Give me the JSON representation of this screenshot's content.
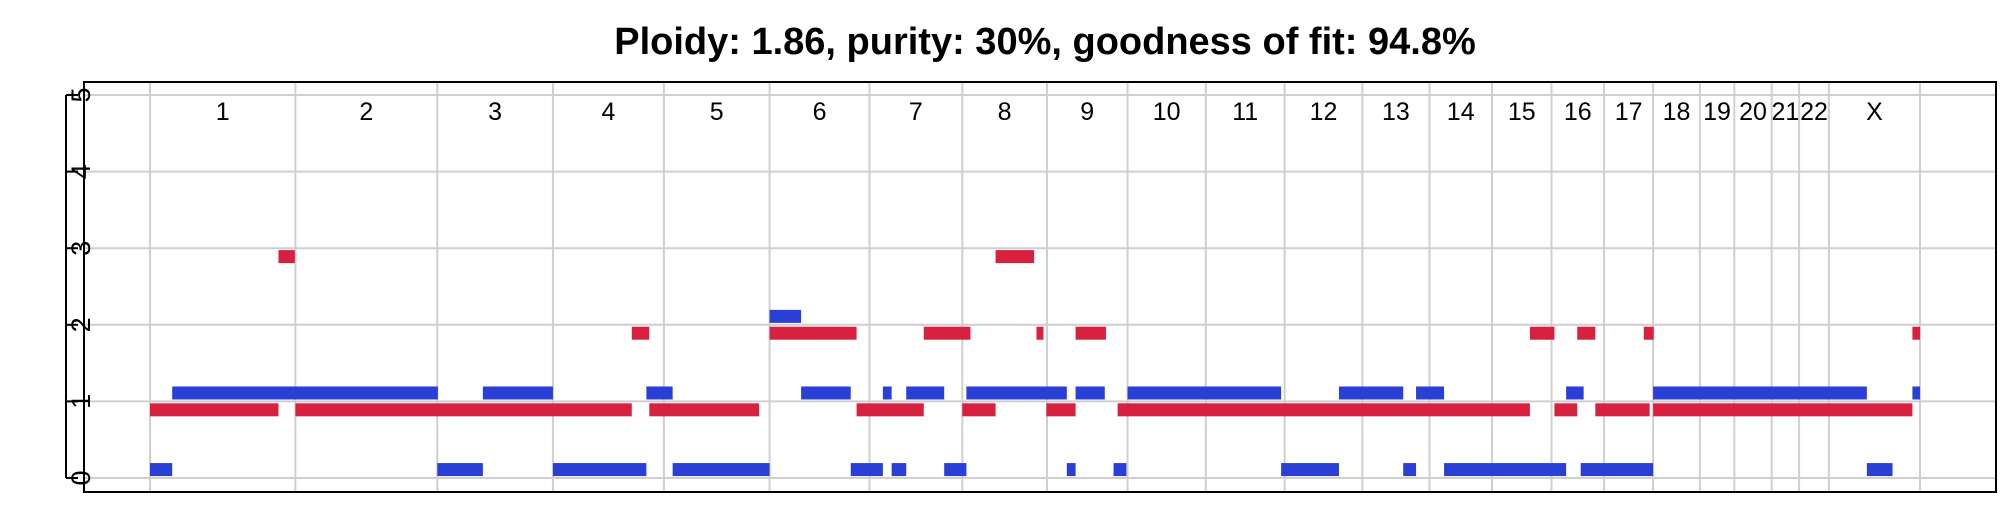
{
  "chart_data": {
    "type": "segment",
    "title": "Ploidy: 1.86, purity: 30%, goodness of fit: 94.8%",
    "ylim": [
      0,
      5
    ],
    "yticks": [
      "0",
      "1",
      "2",
      "3",
      "4",
      "5"
    ],
    "grid": true,
    "chromosomes": [
      {
        "label": "1",
        "start": 0,
        "end": 249
      },
      {
        "label": "2",
        "start": 249,
        "end": 492
      },
      {
        "label": "3",
        "start": 492,
        "end": 690
      },
      {
        "label": "4",
        "start": 690,
        "end": 880
      },
      {
        "label": "5",
        "start": 880,
        "end": 1061
      },
      {
        "label": "6",
        "start": 1061,
        "end": 1232
      },
      {
        "label": "7",
        "start": 1232,
        "end": 1391
      },
      {
        "label": "8",
        "start": 1391,
        "end": 1536
      },
      {
        "label": "9",
        "start": 1536,
        "end": 1674
      },
      {
        "label": "10",
        "start": 1674,
        "end": 1808
      },
      {
        "label": "11",
        "start": 1808,
        "end": 1943
      },
      {
        "label": "12",
        "start": 1943,
        "end": 2076
      },
      {
        "label": "13",
        "start": 2076,
        "end": 2191
      },
      {
        "label": "14",
        "start": 2191,
        "end": 2298
      },
      {
        "label": "15",
        "start": 2298,
        "end": 2400
      },
      {
        "label": "16",
        "start": 2400,
        "end": 2490
      },
      {
        "label": "17",
        "start": 2490,
        "end": 2574
      },
      {
        "label": "18",
        "start": 2574,
        "end": 2654
      },
      {
        "label": "19",
        "start": 2654,
        "end": 2713
      },
      {
        "label": "20",
        "start": 2713,
        "end": 2777
      },
      {
        "label": "21",
        "start": 2777,
        "end": 2824
      },
      {
        "label": "22",
        "start": 2824,
        "end": 2875
      },
      {
        "label": "X",
        "start": 2875,
        "end": 3031
      }
    ],
    "series": [
      {
        "color": "#2a3fd6",
        "segments": [
          {
            "start": 38,
            "end": 493,
            "value": 1.11
          },
          {
            "start": 0,
            "end": 38,
            "value": 0.11
          },
          {
            "start": 492,
            "end": 570,
            "value": 0.11
          },
          {
            "start": 570,
            "end": 690,
            "value": 1.11
          },
          {
            "start": 690,
            "end": 850,
            "value": 0.11
          },
          {
            "start": 850,
            "end": 895,
            "value": 1.11
          },
          {
            "start": 895,
            "end": 1061,
            "value": 0.11
          },
          {
            "start": 1061,
            "end": 1115,
            "value": 2.11
          },
          {
            "start": 1115,
            "end": 1200,
            "value": 1.11
          },
          {
            "start": 1200,
            "end": 1255,
            "value": 0.11
          },
          {
            "start": 1255,
            "end": 1270,
            "value": 1.11
          },
          {
            "start": 1270,
            "end": 1295,
            "value": 0.11
          },
          {
            "start": 1295,
            "end": 1360,
            "value": 1.11
          },
          {
            "start": 1360,
            "end": 1398,
            "value": 0.11
          },
          {
            "start": 1398,
            "end": 1570,
            "value": 1.11
          },
          {
            "start": 1570,
            "end": 1585,
            "value": 0.11
          },
          {
            "start": 1585,
            "end": 1635,
            "value": 1.11
          },
          {
            "start": 1650,
            "end": 1672,
            "value": 0.11
          },
          {
            "start": 1674,
            "end": 1937,
            "value": 1.11
          },
          {
            "start": 1937,
            "end": 2036,
            "value": 0.11
          },
          {
            "start": 2036,
            "end": 2146,
            "value": 1.11
          },
          {
            "start": 2146,
            "end": 2168,
            "value": 0.11
          },
          {
            "start": 2168,
            "end": 2216,
            "value": 1.11
          },
          {
            "start": 2216,
            "end": 2425,
            "value": 0.11
          },
          {
            "start": 2425,
            "end": 2455,
            "value": 1.11
          },
          {
            "start": 2450,
            "end": 2574,
            "value": 0.11
          },
          {
            "start": 2574,
            "end": 2940,
            "value": 1.11
          },
          {
            "start": 2940,
            "end": 2984,
            "value": 0.11
          },
          {
            "start": 3018,
            "end": 3031,
            "value": 1.11
          }
        ]
      },
      {
        "color": "#d8213f",
        "segments": [
          {
            "start": 0,
            "end": 220,
            "value": 0.89
          },
          {
            "start": 220,
            "end": 248,
            "value": 2.89
          },
          {
            "start": 249,
            "end": 825,
            "value": 0.89
          },
          {
            "start": 825,
            "end": 855,
            "value": 1.89
          },
          {
            "start": 855,
            "end": 1043,
            "value": 0.89
          },
          {
            "start": 1061,
            "end": 1210,
            "value": 1.89
          },
          {
            "start": 1210,
            "end": 1325,
            "value": 0.89
          },
          {
            "start": 1325,
            "end": 1405,
            "value": 1.89
          },
          {
            "start": 1391,
            "end": 1448,
            "value": 0.89
          },
          {
            "start": 1448,
            "end": 1514,
            "value": 2.89
          },
          {
            "start": 1518,
            "end": 1530,
            "value": 1.89
          },
          {
            "start": 1535,
            "end": 1585,
            "value": 0.89
          },
          {
            "start": 1585,
            "end": 1637,
            "value": 1.89
          },
          {
            "start": 1657,
            "end": 2363,
            "value": 0.89
          },
          {
            "start": 2363,
            "end": 2405,
            "value": 1.89
          },
          {
            "start": 2405,
            "end": 2444,
            "value": 0.89
          },
          {
            "start": 2444,
            "end": 2475,
            "value": 1.89
          },
          {
            "start": 2475,
            "end": 2568,
            "value": 0.89
          },
          {
            "start": 2558,
            "end": 2575,
            "value": 1.89
          },
          {
            "start": 2574,
            "end": 3018,
            "value": 0.89
          },
          {
            "start": 3018,
            "end": 3031,
            "value": 1.89
          }
        ]
      }
    ]
  }
}
